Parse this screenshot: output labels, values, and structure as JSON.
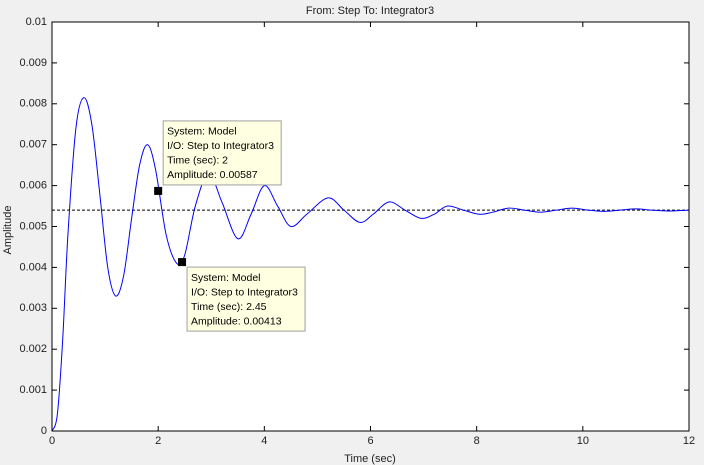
{
  "chart_data": {
    "type": "line",
    "title": "From: Step  To: Integrator3",
    "x_label": "Time (sec)",
    "y_label": "Amplitude",
    "xlim": [
      0,
      12
    ],
    "ylim": [
      0,
      0.01
    ],
    "xticks": [
      0,
      2,
      4,
      6,
      8,
      10,
      12
    ],
    "yticks": [
      0,
      0.001,
      0.002,
      0.003,
      0.004,
      0.005,
      0.006,
      0.007,
      0.008,
      0.009,
      0.01
    ],
    "steady_state": 0.0054,
    "grid": false,
    "series": [
      {
        "name": "Model",
        "color": "#0000ff",
        "x": [
          0,
          0.1,
          0.2,
          0.3,
          0.45,
          0.6,
          0.75,
          0.9,
          1.05,
          1.2,
          1.35,
          1.5,
          1.65,
          1.8,
          1.95,
          2.15,
          2.35,
          2.5,
          2.7,
          2.95,
          3.2,
          3.5,
          3.75,
          4.0,
          4.25,
          4.5,
          4.8,
          5.2,
          5.5,
          5.8,
          6.05,
          6.35,
          6.65,
          6.95,
          7.2,
          7.45,
          7.75,
          8.05,
          8.3,
          8.6,
          8.9,
          9.2,
          9.5,
          9.8,
          10.1,
          10.4,
          10.7,
          11.0,
          11.3,
          11.6,
          12.0
        ],
        "values": [
          0,
          0.0004,
          0.0022,
          0.0048,
          0.0074,
          0.00815,
          0.0075,
          0.0058,
          0.004,
          0.0033,
          0.0038,
          0.0052,
          0.0065,
          0.007,
          0.0064,
          0.0048,
          0.0041,
          0.0043,
          0.0055,
          0.0063,
          0.0056,
          0.0047,
          0.0053,
          0.006,
          0.0055,
          0.005,
          0.0053,
          0.0057,
          0.0054,
          0.0051,
          0.0053,
          0.0056,
          0.0054,
          0.0052,
          0.0053,
          0.0055,
          0.0054,
          0.0053,
          0.00535,
          0.00545,
          0.0054,
          0.00535,
          0.0054,
          0.00545,
          0.0054,
          0.00537,
          0.0054,
          0.00543,
          0.0054,
          0.00538,
          0.0054
        ]
      }
    ],
    "annotations": [
      {
        "x": 2,
        "y": 0.00587,
        "lines": [
          "System: Model",
          "I/O: Step to Integrator3",
          "Time (sec): 2",
          "Amplitude: 0.00587"
        ]
      },
      {
        "x": 2.45,
        "y": 0.00413,
        "lines": [
          "System: Model",
          "I/O: Step to Integrator3",
          "Time (sec): 2.45",
          "Amplitude: 0.00413"
        ]
      }
    ]
  }
}
